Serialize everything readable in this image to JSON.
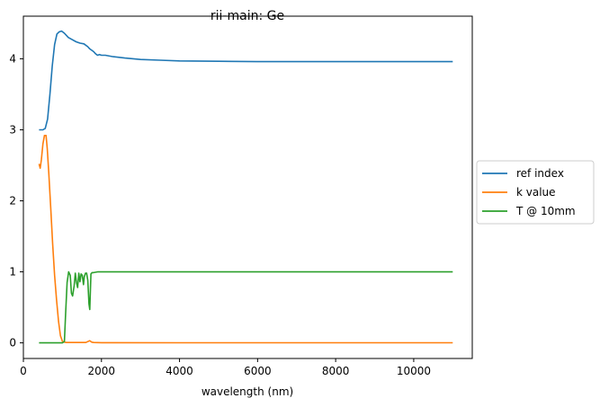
{
  "chart_data": {
    "type": "line",
    "title": "rii-main: Ge",
    "xlabel": "wavelength (nm)",
    "ylabel": "",
    "xlim": [
      0,
      11500
    ],
    "ylim": [
      -0.22,
      4.6
    ],
    "xticks": [
      0,
      2000,
      4000,
      6000,
      8000,
      10000
    ],
    "xtick_labels": [
      "0",
      "2000",
      "4000",
      "6000",
      "8000",
      "10000"
    ],
    "yticks": [
      0,
      1,
      2,
      3,
      4
    ],
    "ytick_labels": [
      "0",
      "1",
      "2",
      "3",
      "4"
    ],
    "grid": false,
    "legend_position": "center-right-outside",
    "series": [
      {
        "name": "ref index",
        "color": "#1f77b4",
        "x": [
          400,
          500,
          560,
          620,
          680,
          740,
          800,
          860,
          920,
          980,
          1050,
          1150,
          1250,
          1350,
          1450,
          1550,
          1650,
          1700,
          1750,
          1800,
          1850,
          1900,
          1950,
          2000,
          2100,
          2300,
          2600,
          3000,
          3500,
          4000,
          5000,
          6000,
          7000,
          8000,
          9000,
          10000,
          11000
        ],
        "y": [
          3.0,
          3.0,
          3.02,
          3.15,
          3.5,
          3.9,
          4.2,
          4.35,
          4.38,
          4.39,
          4.36,
          4.3,
          4.27,
          4.24,
          4.22,
          4.21,
          4.17,
          4.14,
          4.12,
          4.1,
          4.07,
          4.05,
          4.06,
          4.05,
          4.05,
          4.03,
          4.01,
          3.99,
          3.98,
          3.97,
          3.965,
          3.96,
          3.96,
          3.96,
          3.96,
          3.96,
          3.96
        ]
      },
      {
        "name": "k value",
        "color": "#ff7f0e",
        "x": [
          400,
          430,
          460,
          500,
          540,
          580,
          610,
          650,
          700,
          750,
          800,
          850,
          900,
          950,
          1000,
          1050,
          1100,
          1200,
          1400,
          1600,
          1700,
          1750,
          1800,
          2000,
          4000,
          6000,
          8000,
          10000,
          11000
        ],
        "y": [
          2.52,
          2.46,
          2.58,
          2.8,
          2.92,
          2.92,
          2.74,
          2.4,
          1.9,
          1.4,
          0.95,
          0.6,
          0.3,
          0.1,
          0.02,
          0.01,
          0.005,
          0.005,
          0.005,
          0.005,
          0.03,
          0.01,
          0.005,
          0.003,
          0.002,
          0.002,
          0.002,
          0.002,
          0.002
        ]
      },
      {
        "name": "T @ 10mm",
        "color": "#2ca02c",
        "x": [
          400,
          600,
          800,
          1000,
          1050,
          1080,
          1120,
          1160,
          1200,
          1230,
          1260,
          1300,
          1330,
          1360,
          1390,
          1420,
          1450,
          1480,
          1510,
          1540,
          1560,
          1590,
          1620,
          1650,
          1680,
          1700,
          1730,
          1760,
          1800,
          1900,
          2000,
          3000,
          4000,
          6000,
          8000,
          10000,
          11000
        ],
        "y": [
          0.0,
          0.0,
          0.0,
          0.0,
          0.02,
          0.4,
          0.85,
          1.0,
          0.95,
          0.7,
          0.66,
          0.8,
          0.98,
          0.85,
          0.78,
          0.98,
          0.86,
          0.97,
          0.95,
          0.82,
          0.93,
          0.98,
          0.98,
          0.88,
          0.55,
          0.47,
          0.97,
          0.99,
          0.99,
          1.0,
          1.0,
          1.0,
          1.0,
          1.0,
          1.0,
          1.0,
          1.0
        ]
      }
    ]
  }
}
